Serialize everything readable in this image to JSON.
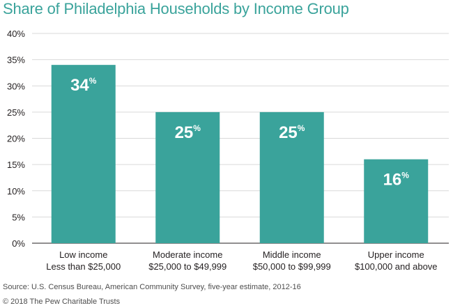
{
  "chart_data": {
    "type": "bar",
    "title": "Share of Philadelphia Households by Income Group",
    "categories": [
      [
        "Low income",
        "Less than $25,000"
      ],
      [
        "Moderate income",
        "$25,000 to $49,999"
      ],
      [
        "Middle income",
        "$50,000 to $99,999"
      ],
      [
        "Upper income",
        "$100,000 and above"
      ]
    ],
    "values": [
      34,
      25,
      25,
      16
    ],
    "data_labels": [
      "34",
      "25",
      "25",
      "16"
    ],
    "data_label_suffix": "%",
    "ylim": [
      0,
      40
    ],
    "yticks": [
      "0%",
      "5%",
      "10%",
      "15%",
      "20%",
      "25%",
      "30%",
      "35%",
      "40%"
    ],
    "grid": true,
    "bar_color": "#3aa39b",
    "grid_color": "#d9d9d9"
  },
  "footer": {
    "source": "Source: U.S. Census Bureau, American Community Survey, five-year estimate, 2012-16",
    "copyright": "© 2018 The Pew Charitable Trusts"
  }
}
